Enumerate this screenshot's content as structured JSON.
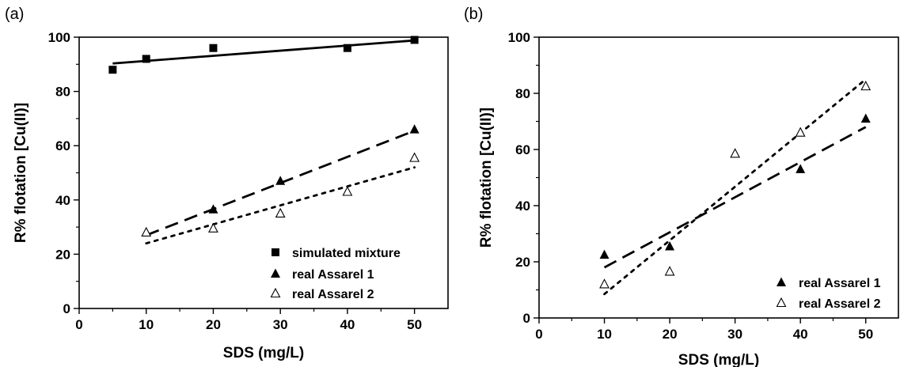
{
  "chart_data": [
    {
      "type": "scatter",
      "panel_label": "(a)",
      "xlabel": "SDS (mg/L)",
      "ylabel": "R% flotation [Cu(II)]",
      "xlim": [
        0,
        55
      ],
      "ylim": [
        0,
        100
      ],
      "xticks": [
        0,
        10,
        20,
        30,
        40,
        50
      ],
      "yticks": [
        0,
        20,
        40,
        60,
        80,
        100
      ],
      "xtick_labels": [
        "0",
        "10",
        "20",
        "30",
        "40",
        "50"
      ],
      "ytick_labels": [
        "0",
        "20",
        "40",
        "60",
        "80",
        "100"
      ],
      "legend_position": "bottom-right",
      "series": [
        {
          "name": "simulated mixture",
          "marker": "filled-square",
          "line_style": "solid",
          "x": [
            5,
            10,
            20,
            40,
            50
          ],
          "y": [
            88,
            92,
            96,
            96,
            99
          ],
          "fit": {
            "x": [
              5,
              50
            ],
            "y": [
              90.3,
              98.8
            ]
          }
        },
        {
          "name": "real Assarel 1",
          "marker": "filled-triangle",
          "line_style": "dashed",
          "x": [
            20,
            30,
            50
          ],
          "y": [
            36.5,
            47,
            66
          ],
          "fit": {
            "x": [
              10,
              50
            ],
            "y": [
              27,
              65.5
            ]
          }
        },
        {
          "name": "real Assarel 2",
          "marker": "open-triangle",
          "line_style": "dotted",
          "x": [
            10,
            20,
            30,
            40,
            50
          ],
          "y": [
            28,
            29.5,
            35,
            43,
            55.5
          ],
          "fit": {
            "x": [
              10,
              50
            ],
            "y": [
              24,
              52
            ]
          }
        }
      ]
    },
    {
      "type": "scatter",
      "panel_label": "(b)",
      "xlabel": "SDS (mg/L)",
      "ylabel": "R% flotation [Cu(II)]",
      "xlim": [
        0,
        55
      ],
      "ylim": [
        0,
        100
      ],
      "xticks": [
        0,
        10,
        20,
        30,
        40,
        50
      ],
      "yticks": [
        0,
        20,
        40,
        60,
        80,
        100
      ],
      "xtick_labels": [
        "0",
        "10",
        "20",
        "30",
        "40",
        "50"
      ],
      "ytick_labels": [
        "0",
        "20",
        "40",
        "60",
        "80",
        "100"
      ],
      "legend_position": "bottom-right",
      "series": [
        {
          "name": "real Assarel 1",
          "marker": "filled-triangle",
          "line_style": "dashed",
          "x": [
            10,
            20,
            40,
            50
          ],
          "y": [
            22.5,
            25.5,
            53,
            71
          ],
          "fit": {
            "x": [
              10,
              50
            ],
            "y": [
              18,
              68
            ]
          }
        },
        {
          "name": "real Assarel 2",
          "marker": "open-triangle",
          "line_style": "dotted",
          "x": [
            10,
            20,
            30,
            40,
            50
          ],
          "y": [
            12,
            16.5,
            58.5,
            66,
            82.5
          ],
          "fit": {
            "x": [
              10,
              50
            ],
            "y": [
              8.5,
              85
            ]
          }
        }
      ]
    }
  ]
}
